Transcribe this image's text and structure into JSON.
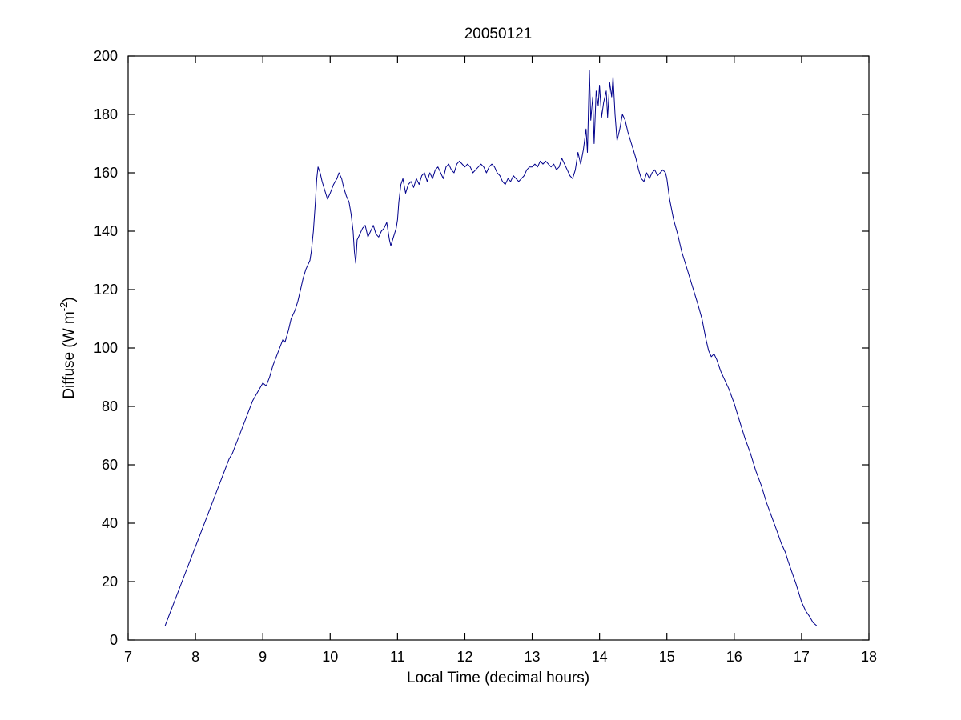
{
  "figure": {
    "title": "20050121",
    "xlabel": "Local Time (decimal hours)",
    "ylabel_prefix": "Diffuse (W m",
    "ylabel_sup": "-2",
    "ylabel_suffix": ")"
  },
  "chart_data": {
    "type": "line",
    "title": "20050121",
    "xlabel": "Local Time (decimal hours)",
    "ylabel": "Diffuse (W m^-2)",
    "xlim": [
      7,
      18
    ],
    "ylim": [
      0,
      200
    ],
    "x_ticks": [
      7,
      8,
      9,
      10,
      11,
      12,
      13,
      14,
      15,
      16,
      17,
      18
    ],
    "y_ticks": [
      0,
      20,
      40,
      60,
      80,
      100,
      120,
      140,
      160,
      180,
      200
    ],
    "grid": false,
    "legend": "none",
    "line_color": "#00008B",
    "axis_color": "#000000",
    "series": [
      {
        "name": "diffuse",
        "points": [
          [
            7.55,
            5
          ],
          [
            7.6,
            8
          ],
          [
            7.65,
            11
          ],
          [
            7.7,
            14
          ],
          [
            7.75,
            17
          ],
          [
            7.8,
            20
          ],
          [
            7.85,
            23
          ],
          [
            7.9,
            26
          ],
          [
            7.95,
            29
          ],
          [
            8.0,
            32
          ],
          [
            8.05,
            35
          ],
          [
            8.1,
            38
          ],
          [
            8.15,
            41
          ],
          [
            8.2,
            44
          ],
          [
            8.25,
            47
          ],
          [
            8.3,
            50
          ],
          [
            8.35,
            53
          ],
          [
            8.4,
            56
          ],
          [
            8.45,
            59
          ],
          [
            8.5,
            62
          ],
          [
            8.55,
            64
          ],
          [
            8.6,
            67
          ],
          [
            8.65,
            70
          ],
          [
            8.7,
            73
          ],
          [
            8.75,
            76
          ],
          [
            8.8,
            79
          ],
          [
            8.85,
            82
          ],
          [
            8.9,
            84
          ],
          [
            8.95,
            86
          ],
          [
            9.0,
            88
          ],
          [
            9.05,
            87
          ],
          [
            9.1,
            90
          ],
          [
            9.15,
            94
          ],
          [
            9.2,
            97
          ],
          [
            9.25,
            100
          ],
          [
            9.3,
            103
          ],
          [
            9.33,
            102
          ],
          [
            9.38,
            106
          ],
          [
            9.42,
            110
          ],
          [
            9.48,
            113
          ],
          [
            9.52,
            116
          ],
          [
            9.56,
            120
          ],
          [
            9.6,
            124
          ],
          [
            9.64,
            127
          ],
          [
            9.68,
            129
          ],
          [
            9.7,
            130
          ],
          [
            9.72,
            133
          ],
          [
            9.75,
            140
          ],
          [
            9.78,
            150
          ],
          [
            9.8,
            158
          ],
          [
            9.82,
            162
          ],
          [
            9.85,
            160
          ],
          [
            9.88,
            157
          ],
          [
            9.92,
            154
          ],
          [
            9.96,
            151
          ],
          [
            10.0,
            153
          ],
          [
            10.05,
            156
          ],
          [
            10.1,
            158
          ],
          [
            10.13,
            160
          ],
          [
            10.17,
            158
          ],
          [
            10.2,
            155
          ],
          [
            10.24,
            152
          ],
          [
            10.28,
            150
          ],
          [
            10.31,
            146
          ],
          [
            10.34,
            140
          ],
          [
            10.36,
            133
          ],
          [
            10.38,
            129
          ],
          [
            10.4,
            137
          ],
          [
            10.44,
            139
          ],
          [
            10.48,
            141
          ],
          [
            10.52,
            142
          ],
          [
            10.56,
            138
          ],
          [
            10.6,
            140
          ],
          [
            10.64,
            142
          ],
          [
            10.68,
            139
          ],
          [
            10.72,
            138
          ],
          [
            10.76,
            140
          ],
          [
            10.8,
            141
          ],
          [
            10.84,
            143
          ],
          [
            10.88,
            137
          ],
          [
            10.9,
            135
          ],
          [
            10.94,
            138
          ],
          [
            10.98,
            141
          ],
          [
            11.0,
            144
          ],
          [
            11.02,
            150
          ],
          [
            11.05,
            156
          ],
          [
            11.08,
            158
          ],
          [
            11.12,
            153
          ],
          [
            11.16,
            156
          ],
          [
            11.2,
            157
          ],
          [
            11.24,
            155
          ],
          [
            11.28,
            158
          ],
          [
            11.32,
            156
          ],
          [
            11.36,
            159
          ],
          [
            11.4,
            160
          ],
          [
            11.44,
            157
          ],
          [
            11.48,
            160
          ],
          [
            11.52,
            158
          ],
          [
            11.56,
            161
          ],
          [
            11.6,
            162
          ],
          [
            11.64,
            160
          ],
          [
            11.68,
            158
          ],
          [
            11.72,
            162
          ],
          [
            11.76,
            163
          ],
          [
            11.8,
            161
          ],
          [
            11.84,
            160
          ],
          [
            11.88,
            163
          ],
          [
            11.92,
            164
          ],
          [
            11.96,
            163
          ],
          [
            12.0,
            162
          ],
          [
            12.04,
            163
          ],
          [
            12.08,
            162
          ],
          [
            12.12,
            160
          ],
          [
            12.16,
            161
          ],
          [
            12.2,
            162
          ],
          [
            12.24,
            163
          ],
          [
            12.28,
            162
          ],
          [
            12.32,
            160
          ],
          [
            12.36,
            162
          ],
          [
            12.4,
            163
          ],
          [
            12.44,
            162
          ],
          [
            12.48,
            160
          ],
          [
            12.52,
            159
          ],
          [
            12.56,
            157
          ],
          [
            12.6,
            156
          ],
          [
            12.64,
            158
          ],
          [
            12.68,
            157
          ],
          [
            12.72,
            159
          ],
          [
            12.76,
            158
          ],
          [
            12.8,
            157
          ],
          [
            12.84,
            158
          ],
          [
            12.88,
            159
          ],
          [
            12.92,
            161
          ],
          [
            12.96,
            162
          ],
          [
            13.0,
            162
          ],
          [
            13.04,
            163
          ],
          [
            13.08,
            162
          ],
          [
            13.12,
            164
          ],
          [
            13.16,
            163
          ],
          [
            13.2,
            164
          ],
          [
            13.24,
            163
          ],
          [
            13.28,
            162
          ],
          [
            13.32,
            163
          ],
          [
            13.36,
            161
          ],
          [
            13.4,
            162
          ],
          [
            13.44,
            165
          ],
          [
            13.48,
            163
          ],
          [
            13.52,
            161
          ],
          [
            13.56,
            159
          ],
          [
            13.6,
            158
          ],
          [
            13.64,
            161
          ],
          [
            13.68,
            167
          ],
          [
            13.72,
            163
          ],
          [
            13.76,
            168
          ],
          [
            13.8,
            175
          ],
          [
            13.82,
            167
          ],
          [
            13.85,
            195
          ],
          [
            13.87,
            178
          ],
          [
            13.9,
            186
          ],
          [
            13.92,
            170
          ],
          [
            13.95,
            188
          ],
          [
            13.98,
            183
          ],
          [
            14.0,
            190
          ],
          [
            14.03,
            179
          ],
          [
            14.06,
            184
          ],
          [
            14.1,
            188
          ],
          [
            14.12,
            179
          ],
          [
            14.15,
            191
          ],
          [
            14.18,
            186
          ],
          [
            14.2,
            193
          ],
          [
            14.23,
            180
          ],
          [
            14.26,
            171
          ],
          [
            14.3,
            175
          ],
          [
            14.34,
            180
          ],
          [
            14.38,
            178
          ],
          [
            14.42,
            174
          ],
          [
            14.46,
            171
          ],
          [
            14.5,
            168
          ],
          [
            14.54,
            165
          ],
          [
            14.58,
            161
          ],
          [
            14.62,
            158
          ],
          [
            14.66,
            157
          ],
          [
            14.7,
            160
          ],
          [
            14.74,
            158
          ],
          [
            14.78,
            160
          ],
          [
            14.82,
            161
          ],
          [
            14.86,
            159
          ],
          [
            14.9,
            160
          ],
          [
            14.94,
            161
          ],
          [
            14.98,
            160
          ],
          [
            15.0,
            158
          ],
          [
            15.04,
            151
          ],
          [
            15.1,
            144
          ],
          [
            15.16,
            139
          ],
          [
            15.22,
            133
          ],
          [
            15.3,
            127
          ],
          [
            15.38,
            121
          ],
          [
            15.46,
            115
          ],
          [
            15.52,
            110
          ],
          [
            15.58,
            103
          ],
          [
            15.62,
            99
          ],
          [
            15.66,
            97
          ],
          [
            15.7,
            98
          ],
          [
            15.74,
            96
          ],
          [
            15.8,
            92
          ],
          [
            15.86,
            89
          ],
          [
            15.92,
            86
          ],
          [
            16.0,
            81
          ],
          [
            16.08,
            75
          ],
          [
            16.16,
            69
          ],
          [
            16.24,
            64
          ],
          [
            16.32,
            58
          ],
          [
            16.4,
            53
          ],
          [
            16.48,
            47
          ],
          [
            16.56,
            42
          ],
          [
            16.64,
            37
          ],
          [
            16.7,
            33
          ],
          [
            16.76,
            30
          ],
          [
            16.8,
            27
          ],
          [
            16.86,
            23
          ],
          [
            16.92,
            19
          ],
          [
            17.0,
            13
          ],
          [
            17.06,
            10
          ],
          [
            17.12,
            8
          ],
          [
            17.17,
            6
          ],
          [
            17.22,
            5
          ]
        ]
      }
    ]
  }
}
